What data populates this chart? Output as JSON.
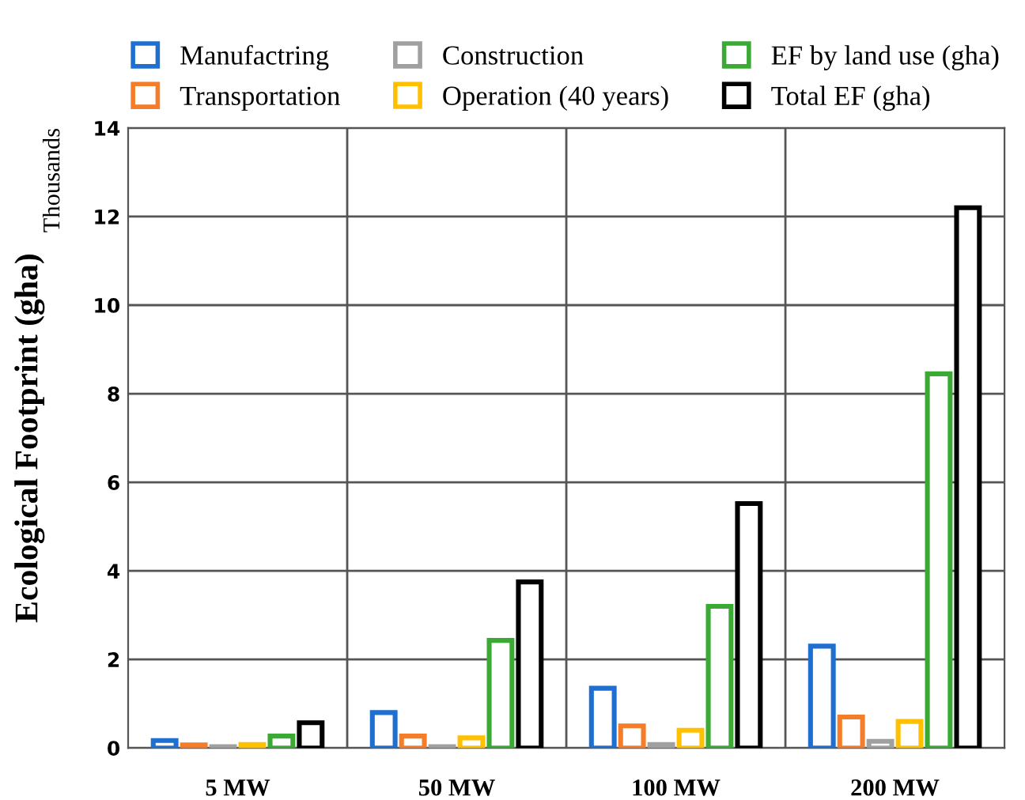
{
  "chart_data": {
    "type": "bar",
    "ylabel": "Ecological Footprint (gha)",
    "annotations": [
      "Thousands"
    ],
    "categories": [
      "5 MW",
      "50 MW",
      "100 MW",
      "200 MW"
    ],
    "series": [
      {
        "name": "Manufactring",
        "color": "#1f6fd0",
        "values": [
          0.17,
          0.8,
          1.35,
          2.3
        ]
      },
      {
        "name": "Transportation",
        "color": "#f57c28",
        "values": [
          0.07,
          0.27,
          0.5,
          0.7
        ]
      },
      {
        "name": "Construction",
        "color": "#a0a0a0",
        "values": [
          0.03,
          0.03,
          0.08,
          0.15
        ]
      },
      {
        "name": "Operation (40 years)",
        "color": "#ffc000",
        "values": [
          0.08,
          0.23,
          0.4,
          0.6
        ]
      },
      {
        "name": "EF by land use (gha)",
        "color": "#3aaa35",
        "values": [
          0.27,
          2.43,
          3.2,
          8.45
        ]
      },
      {
        "name": "Total EF (gha)",
        "color": "#000000",
        "values": [
          0.57,
          3.75,
          5.52,
          12.2
        ]
      }
    ],
    "ylim": [
      0,
      14
    ],
    "yticks": [
      0,
      2,
      4,
      6,
      8,
      10,
      12,
      14
    ],
    "grid": true,
    "legend": "top"
  }
}
